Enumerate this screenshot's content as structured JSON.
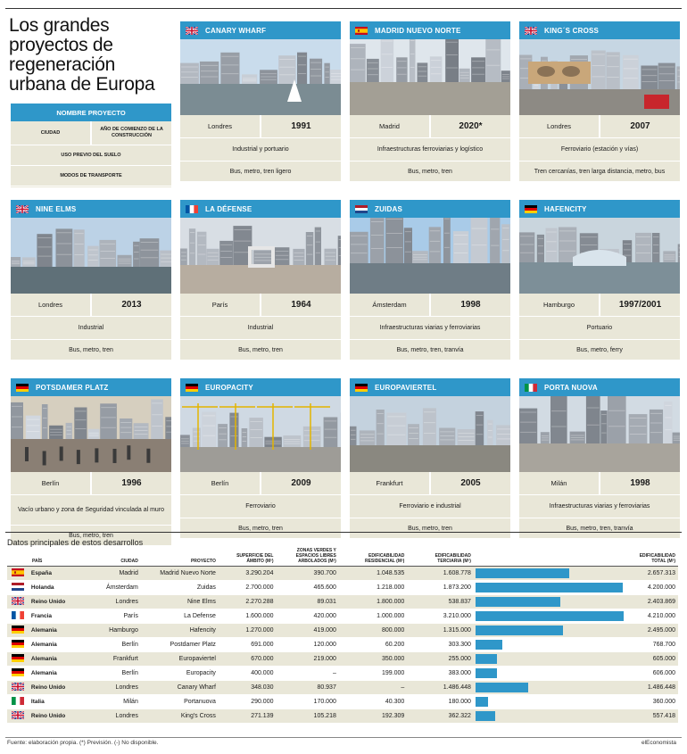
{
  "title": "Los grandes proyectos de regeneración urbana de Europa",
  "legend": {
    "name": "NOMBRE PROYECTO",
    "city": "CIUDAD",
    "year": "AÑO DE COMIENZO DE LA CONSTRUCCIÓN",
    "use": "USO PREVIO DEL SUELO",
    "transport": "MODOS DE TRANSPORTE"
  },
  "cards": [
    {
      "name": "CANARY WHARF",
      "flag": "uk",
      "city": "Londres",
      "year": "1991",
      "use": "Industrial y portuario",
      "transport": "Bus, metro, tren ligero",
      "icon": "london-docks-photo"
    },
    {
      "name": "MADRID NUEVO NORTE",
      "flag": "es",
      "city": "Madrid",
      "year": "2020*",
      "use": "Infraestructuras ferroviarias y logístico",
      "transport": "Bus, metro, tren",
      "icon": "madrid-towers-photo"
    },
    {
      "name": "KING´S CROSS",
      "flag": "uk",
      "city": "Londres",
      "year": "2007",
      "use": "Ferroviario (estación y vías)",
      "transport": "Tren cercanías, tren larga distancia, metro, bus",
      "icon": "kings-cross-station-photo"
    },
    {
      "name": "NINE ELMS",
      "flag": "uk",
      "city": "Londres",
      "year": "2013",
      "use": "Industrial",
      "transport": "Bus, metro, tren",
      "icon": "thames-riverside-photo"
    },
    {
      "name": "LA DÉFENSE",
      "flag": "fr",
      "city": "París",
      "year": "1964",
      "use": "Industrial",
      "transport": "Bus, metro, tren",
      "icon": "la-defense-arch-photo"
    },
    {
      "name": "ZUIDAS",
      "flag": "nl",
      "city": "Ámsterdam",
      "year": "1998",
      "use": "Infraestructuras viarias y ferroviarias",
      "transport": "Bus, metro, tren, tranvía",
      "icon": "zuidas-towers-photo"
    },
    {
      "name": "HAFENCITY",
      "flag": "de",
      "city": "Hamburgo",
      "year": "1997/2001",
      "use": "Portuario",
      "transport": "Bus, metro, ferry",
      "icon": "hafencity-aerial-photo"
    },
    {
      "name": "POTSDAMER PLATZ",
      "flag": "de",
      "city": "Berlín",
      "year": "1996",
      "use": "Vacío urbano y zona de Seguridad vinculada al muro",
      "transport": "Bus, metro, tren",
      "icon": "potsdamer-street-photo"
    },
    {
      "name": "EUROPACITY",
      "flag": "de",
      "city": "Berlín",
      "year": "2009",
      "use": "Ferroviario",
      "transport": "Bus, metro, tren",
      "icon": "europacity-cranes-photo"
    },
    {
      "name": "EUROPAVIERTEL",
      "flag": "de",
      "city": "Frankfurt",
      "year": "2005",
      "use": "Ferroviario e industrial",
      "transport": "Bus, metro, tren",
      "icon": "europaviertel-street-photo"
    },
    {
      "name": "PORTA NUOVA",
      "flag": "it",
      "city": "Milán",
      "year": "1998",
      "use": "Infraestructuras viarias y ferroviarias",
      "transport": "Bus, metro, tren, tranvía",
      "icon": "porta-nuova-skyline-photo"
    }
  ],
  "table": {
    "title": "Datos principales de estos desarrollos",
    "headers": {
      "country": "PAÍS",
      "city": "CIUDAD",
      "project": "PROYECTO",
      "area": "SUPERFICIE DEL ÁMBITO (M²)",
      "green": "ZONAS VERDES Y ESPACIOS LIBRES ARBOLADOS (M²)",
      "res": "EDIFICABILIDAD RESIDENCIAL (M²)",
      "ter": "EDIFICABILIDAD TERCIARIA (M²)",
      "total": "EDIFICABILIDAD TOTAL (M²)"
    },
    "rows": [
      {
        "flag": "es",
        "country": "España",
        "city": "Madrid",
        "project": "Madrid Nuevo Norte",
        "area": "3.290.204",
        "green": "390.700",
        "res": "1.048.535",
        "ter": "1.608.778",
        "total": "2.657.313",
        "total_value": 2657313
      },
      {
        "flag": "nl",
        "country": "Holanda",
        "city": "Ámsterdam",
        "project": "Zuidas",
        "area": "2.700.000",
        "green": "465.600",
        "res": "1.218.000",
        "ter": "1.873.200",
        "total": "4.200.000",
        "total_value": 4200000
      },
      {
        "flag": "uk",
        "country": "Reino Unido",
        "city": "Londres",
        "project": "Nine Elms",
        "area": "2.270.288",
        "green": "89.031",
        "res": "1.800.000",
        "ter": "538.837",
        "total": "2.403.869",
        "total_value": 2403869
      },
      {
        "flag": "fr",
        "country": "Francia",
        "city": "París",
        "project": "La Defense",
        "area": "1.600.000",
        "green": "420.000",
        "res": "1.000.000",
        "ter": "3.210.000",
        "total": "4.210.000",
        "total_value": 4210000
      },
      {
        "flag": "de",
        "country": "Alemania",
        "city": "Hamburgo",
        "project": "Hafencity",
        "area": "1.270.000",
        "green": "419.000",
        "res": "800.000",
        "ter": "1.315.000",
        "total": "2.495.000",
        "total_value": 2495000
      },
      {
        "flag": "de",
        "country": "Alemania",
        "city": "Berlín",
        "project": "Postdamer Platz",
        "area": "691.000",
        "green": "120.000",
        "res": "60.200",
        "ter": "303.300",
        "total": "768.700",
        "total_value": 768700
      },
      {
        "flag": "de",
        "country": "Alemania",
        "city": "Frankfurt",
        "project": "Europaviertel",
        "area": "670.000",
        "green": "219.000",
        "res": "350.000",
        "ter": "255.000",
        "total": "605.000",
        "total_value": 605000
      },
      {
        "flag": "de",
        "country": "Alemania",
        "city": "Berlín",
        "project": "Europacity",
        "area": "400.000",
        "green": "–",
        "res": "199.000",
        "ter": "383.000",
        "total": "606.000",
        "total_value": 606000
      },
      {
        "flag": "uk",
        "country": "Reino Unido",
        "city": "Londres",
        "project": "Canary Wharf",
        "area": "348.030",
        "green": "80.937",
        "res": "–",
        "ter": "1.486.448",
        "total": "1.486.448",
        "total_value": 1486448
      },
      {
        "flag": "it",
        "country": "Italia",
        "city": "Milán",
        "project": "Portanuova",
        "area": "290.000",
        "green": "170.000",
        "res": "40.300",
        "ter": "180.000",
        "total": "360.000",
        "total_value": 360000
      },
      {
        "flag": "uk",
        "country": "Reino Unido",
        "city": "Londres",
        "project": "King's Cross",
        "area": "271.139",
        "green": "105.218",
        "res": "192.309",
        "ter": "362.322",
        "total": "557.418",
        "total_value": 557418
      }
    ]
  },
  "footer": "Fuente: elaboración propia. (*) Previsión. (-) No disponible.",
  "brand": "elEconomista",
  "colors": {
    "accent": "#2f97c9",
    "panel": "#e9e7d8"
  }
}
